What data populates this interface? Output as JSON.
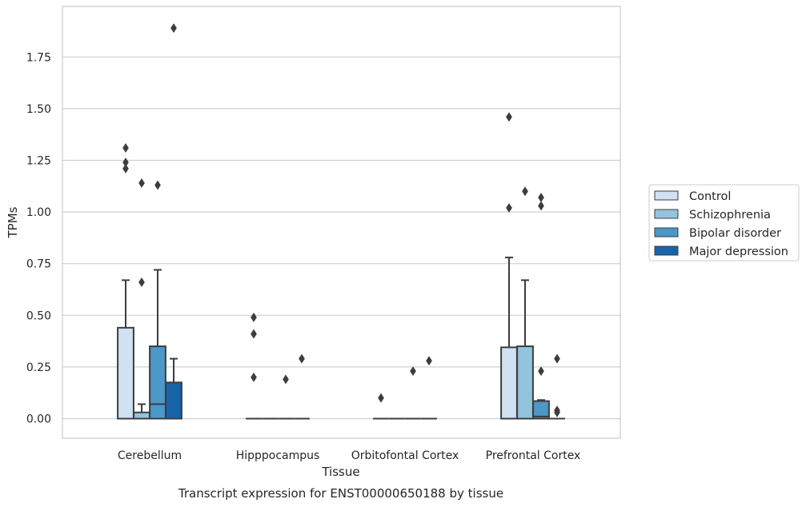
{
  "chart_data": {
    "type": "box",
    "title": "",
    "caption": "Transcript expression for ENST00000650188 by tissue",
    "xlabel": "Tissue",
    "ylabel": "TPMs",
    "ylim": [
      -0.09,
      1.98
    ],
    "yticks": [
      "0.00",
      "0.25",
      "0.50",
      "0.75",
      "1.00",
      "1.25",
      "1.50",
      "1.75"
    ],
    "grid": "horizontal",
    "legend_position": "right",
    "categories": [
      "Cerebellum",
      "Hipppocampus",
      "Orbitofontal Cortex",
      "Prefrontal Cortex"
    ],
    "series": [
      {
        "name": "Control",
        "color": "#cfe1f2"
      },
      {
        "name": "Schizophrenia",
        "color": "#93c4de"
      },
      {
        "name": "Bipolar disorder",
        "color": "#4b98c9"
      },
      {
        "name": "Major depression",
        "color": "#1764ab"
      }
    ],
    "boxes": [
      [
        {
          "q1": 0.0,
          "median": 0.0,
          "q3": 0.44,
          "whisker_low": 0.0,
          "whisker_high": 0.67,
          "outliers": [
            1.21,
            1.24,
            1.31
          ]
        },
        {
          "q1": 0.0,
          "median": 0.0,
          "q3": 0.03,
          "whisker_low": 0.0,
          "whisker_high": 0.07,
          "outliers": [
            0.66,
            1.14
          ]
        },
        {
          "q1": 0.0,
          "median": 0.07,
          "q3": 0.35,
          "whisker_low": 0.0,
          "whisker_high": 0.72,
          "outliers": [
            1.13
          ]
        },
        {
          "q1": 0.0,
          "median": 0.0,
          "q3": 0.175,
          "whisker_low": 0.0,
          "whisker_high": 0.29,
          "outliers": [
            1.89
          ]
        }
      ],
      [
        {
          "q1": 0.0,
          "median": 0.0,
          "q3": 0.0,
          "whisker_low": 0.0,
          "whisker_high": 0.0,
          "outliers": [
            0.2,
            0.41,
            0.49
          ]
        },
        {
          "q1": 0.0,
          "median": 0.0,
          "q3": 0.0,
          "whisker_low": 0.0,
          "whisker_high": 0.0,
          "outliers": []
        },
        {
          "q1": 0.0,
          "median": 0.0,
          "q3": 0.0,
          "whisker_low": 0.0,
          "whisker_high": 0.0,
          "outliers": [
            0.19
          ]
        },
        {
          "q1": 0.0,
          "median": 0.0,
          "q3": 0.0,
          "whisker_low": 0.0,
          "whisker_high": 0.0,
          "outliers": [
            0.29
          ]
        }
      ],
      [
        {
          "q1": 0.0,
          "median": 0.0,
          "q3": 0.0,
          "whisker_low": 0.0,
          "whisker_high": 0.0,
          "outliers": [
            0.1
          ]
        },
        {
          "q1": 0.0,
          "median": 0.0,
          "q3": 0.0,
          "whisker_low": 0.0,
          "whisker_high": 0.0,
          "outliers": []
        },
        {
          "q1": 0.0,
          "median": 0.0,
          "q3": 0.0,
          "whisker_low": 0.0,
          "whisker_high": 0.0,
          "outliers": [
            0.23
          ]
        },
        {
          "q1": 0.0,
          "median": 0.0,
          "q3": 0.0,
          "whisker_low": 0.0,
          "whisker_high": 0.0,
          "outliers": [
            0.28
          ]
        }
      ],
      [
        {
          "q1": 0.0,
          "median": 0.0,
          "q3": 0.345,
          "whisker_low": 0.0,
          "whisker_high": 0.78,
          "outliers": [
            1.02,
            1.46
          ]
        },
        {
          "q1": 0.0,
          "median": 0.0,
          "q3": 0.35,
          "whisker_low": 0.0,
          "whisker_high": 0.67,
          "outliers": [
            1.1
          ]
        },
        {
          "q1": 0.0,
          "median": 0.01,
          "q3": 0.085,
          "whisker_low": 0.0,
          "whisker_high": 0.09,
          "outliers": [
            0.23,
            1.03,
            1.07
          ]
        },
        {
          "q1": 0.0,
          "median": 0.0,
          "q3": 0.0,
          "whisker_low": 0.0,
          "whisker_high": 0.0,
          "outliers": [
            0.03,
            0.04,
            0.29
          ]
        }
      ]
    ]
  }
}
